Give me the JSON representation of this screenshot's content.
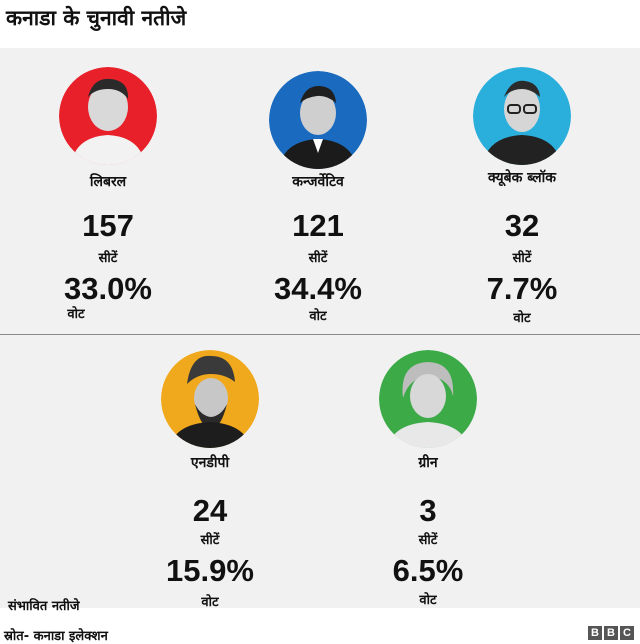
{
  "title": "कनाडा के चुनावी नतीजे",
  "parties": [
    {
      "name": "लिबरल",
      "seats": "157",
      "seats_label": "सीटें",
      "vote_pct": "33.0%",
      "vote_label": "वोट",
      "color": "#e8202a"
    },
    {
      "name": "कन्जर्वेटिव",
      "seats": "121",
      "seats_label": "सीटें",
      "vote_pct": "34.4%",
      "vote_label": "वोट",
      "color": "#1a6bbf"
    },
    {
      "name": "क्यूबेक ब्लॉक",
      "seats": "32",
      "seats_label": "सीटें",
      "vote_pct": "7.7%",
      "vote_label": "वोट",
      "color": "#2aaedc"
    },
    {
      "name": "एनडीपी",
      "seats": "24",
      "seats_label": "सीटें",
      "vote_pct": "15.9%",
      "vote_label": "वोट",
      "color": "#f0a81c"
    },
    {
      "name": "ग्रीन",
      "seats": "3",
      "seats_label": "सीटें",
      "vote_pct": "6.5%",
      "vote_label": "वोट",
      "color": "#3daa48"
    }
  ],
  "footnote": "संभावित नतीजे",
  "source": "स्रोत- कनाडा इलेक्शन",
  "logo": {
    "letters": [
      "B",
      "B",
      "C"
    ]
  }
}
